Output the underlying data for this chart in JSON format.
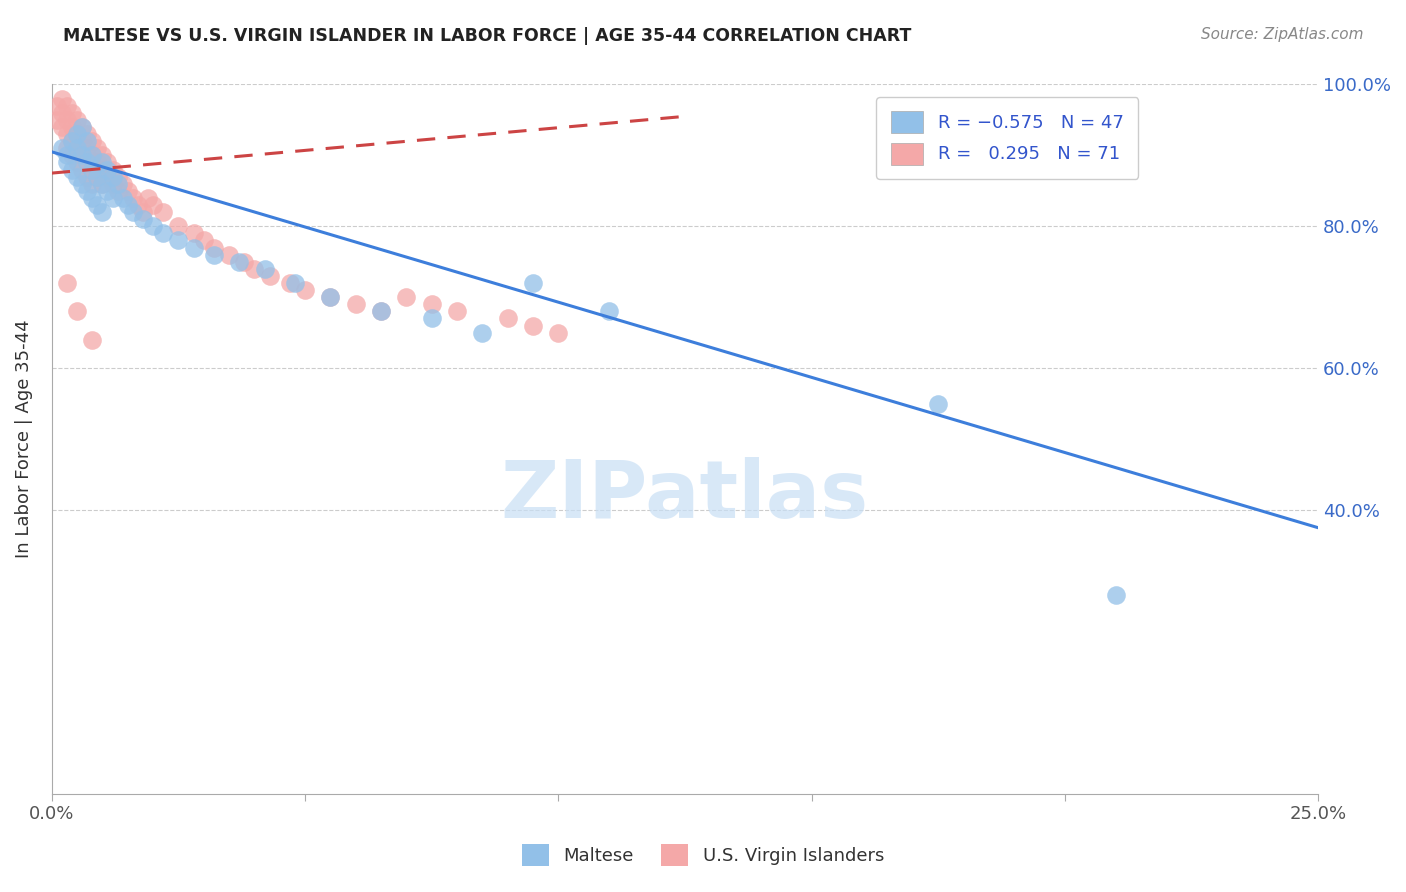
{
  "title": "MALTESE VS U.S. VIRGIN ISLANDER IN LABOR FORCE | AGE 35-44 CORRELATION CHART",
  "source": "Source: ZipAtlas.com",
  "ylabel": "In Labor Force | Age 35-44",
  "x_min": 0.0,
  "x_max": 0.25,
  "y_min": 0.0,
  "y_max": 1.0,
  "blue_color": "#92c0e8",
  "pink_color": "#f4a8a8",
  "blue_line_color": "#3d7edb",
  "pink_line_color": "#cc4444",
  "watermark": "ZIPatlas",
  "legend_text_color": "#3355cc",
  "blue_line_x0": 0.0,
  "blue_line_x1": 0.25,
  "blue_line_y0": 0.905,
  "blue_line_y1": 0.375,
  "pink_line_x0": 0.0,
  "pink_line_x1": 0.125,
  "pink_line_y0": 0.875,
  "pink_line_y1": 0.955,
  "blue_scatter_x": [
    0.002,
    0.003,
    0.003,
    0.004,
    0.004,
    0.005,
    0.005,
    0.005,
    0.006,
    0.006,
    0.006,
    0.007,
    0.007,
    0.007,
    0.008,
    0.008,
    0.008,
    0.009,
    0.009,
    0.01,
    0.01,
    0.01,
    0.011,
    0.011,
    0.012,
    0.012,
    0.013,
    0.014,
    0.015,
    0.016,
    0.018,
    0.02,
    0.022,
    0.025,
    0.028,
    0.032,
    0.037,
    0.042,
    0.048,
    0.055,
    0.065,
    0.075,
    0.085,
    0.095,
    0.11,
    0.175,
    0.21
  ],
  "blue_scatter_y": [
    0.91,
    0.9,
    0.89,
    0.92,
    0.88,
    0.91,
    0.87,
    0.93,
    0.9,
    0.86,
    0.94,
    0.89,
    0.85,
    0.92,
    0.88,
    0.84,
    0.9,
    0.87,
    0.83,
    0.86,
    0.89,
    0.82,
    0.88,
    0.85,
    0.84,
    0.87,
    0.86,
    0.84,
    0.83,
    0.82,
    0.81,
    0.8,
    0.79,
    0.78,
    0.77,
    0.76,
    0.75,
    0.74,
    0.72,
    0.7,
    0.68,
    0.67,
    0.65,
    0.72,
    0.68,
    0.55,
    0.28
  ],
  "pink_scatter_x": [
    0.001,
    0.001,
    0.002,
    0.002,
    0.002,
    0.003,
    0.003,
    0.003,
    0.003,
    0.004,
    0.004,
    0.004,
    0.004,
    0.005,
    0.005,
    0.005,
    0.005,
    0.006,
    0.006,
    0.006,
    0.006,
    0.007,
    0.007,
    0.007,
    0.007,
    0.008,
    0.008,
    0.008,
    0.008,
    0.009,
    0.009,
    0.009,
    0.01,
    0.01,
    0.01,
    0.011,
    0.011,
    0.012,
    0.012,
    0.013,
    0.013,
    0.014,
    0.015,
    0.016,
    0.017,
    0.018,
    0.019,
    0.02,
    0.022,
    0.025,
    0.028,
    0.03,
    0.032,
    0.035,
    0.038,
    0.04,
    0.043,
    0.047,
    0.05,
    0.055,
    0.06,
    0.065,
    0.07,
    0.075,
    0.08,
    0.09,
    0.095,
    0.1,
    0.003,
    0.005,
    0.008
  ],
  "pink_scatter_y": [
    0.97,
    0.95,
    0.96,
    0.94,
    0.98,
    0.95,
    0.93,
    0.97,
    0.91,
    0.96,
    0.94,
    0.92,
    0.9,
    0.95,
    0.93,
    0.91,
    0.89,
    0.94,
    0.92,
    0.9,
    0.88,
    0.93,
    0.91,
    0.89,
    0.87,
    0.92,
    0.9,
    0.88,
    0.86,
    0.91,
    0.89,
    0.87,
    0.9,
    0.88,
    0.86,
    0.89,
    0.87,
    0.88,
    0.86,
    0.87,
    0.85,
    0.86,
    0.85,
    0.84,
    0.83,
    0.82,
    0.84,
    0.83,
    0.82,
    0.8,
    0.79,
    0.78,
    0.77,
    0.76,
    0.75,
    0.74,
    0.73,
    0.72,
    0.71,
    0.7,
    0.69,
    0.68,
    0.7,
    0.69,
    0.68,
    0.67,
    0.66,
    0.65,
    0.72,
    0.68,
    0.64
  ]
}
